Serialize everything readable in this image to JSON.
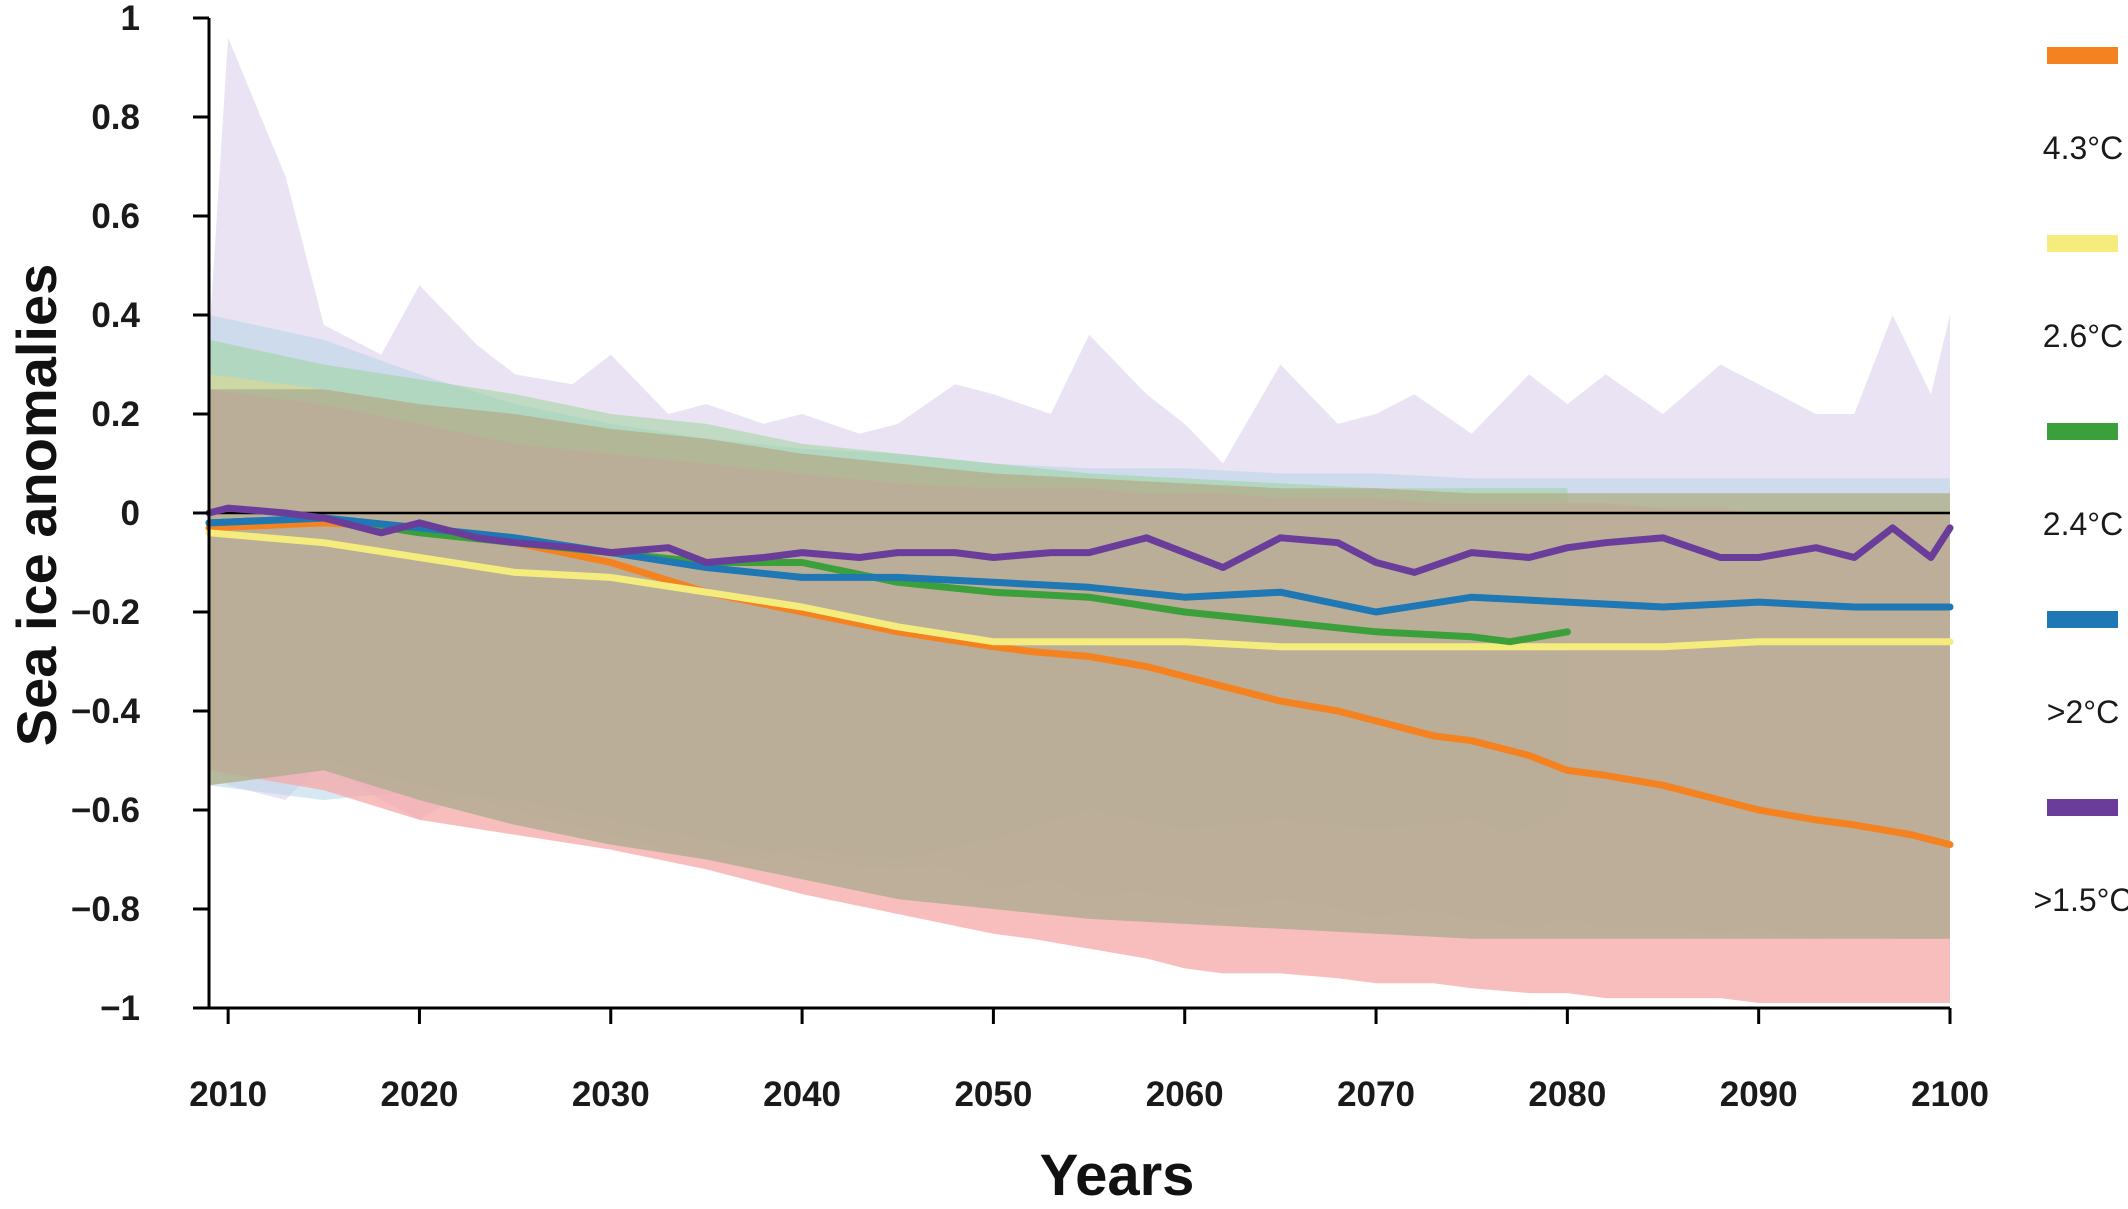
{
  "chart_data": {
    "type": "line",
    "title": "",
    "xlabel": "Years",
    "ylabel": "Sea ice anomalies",
    "xlim": [
      2009,
      2100
    ],
    "ylim": [
      -1,
      1
    ],
    "xticks": [
      2010,
      2020,
      2030,
      2040,
      2050,
      2060,
      2070,
      2080,
      2090,
      2100
    ],
    "xtick_labels": [
      "2010",
      "2020",
      "2030",
      "2040",
      "2050",
      "2060",
      "2070",
      "2080",
      "2090",
      "2100"
    ],
    "yticks": [
      1,
      0.8,
      0.6,
      0.4,
      0.2,
      0,
      -0.2,
      -0.4,
      -0.6,
      -0.8,
      -1
    ],
    "ytick_labels": [
      "1",
      "0.8",
      "0.6",
      "0.4",
      "0.2",
      "0",
      "−0.2",
      "−0.4",
      "−0.6",
      "−0.8",
      "−1"
    ],
    "zero_line": true,
    "grid": false,
    "legend_position": "right",
    "series": [
      {
        "name": "4.3°C",
        "color": "#F58220",
        "band_color": "#F6A8A8",
        "x": [
          2009,
          2015,
          2020,
          2025,
          2030,
          2035,
          2040,
          2045,
          2050,
          2052,
          2055,
          2058,
          2060,
          2062,
          2065,
          2068,
          2070,
          2073,
          2075,
          2078,
          2080,
          2082,
          2085,
          2088,
          2090,
          2093,
          2095,
          2098,
          2100
        ],
        "y": [
          -0.03,
          -0.02,
          -0.03,
          -0.06,
          -0.1,
          -0.16,
          -0.2,
          -0.24,
          -0.27,
          -0.28,
          -0.29,
          -0.31,
          -0.33,
          -0.35,
          -0.38,
          -0.4,
          -0.42,
          -0.45,
          -0.46,
          -0.49,
          -0.52,
          -0.53,
          -0.55,
          -0.58,
          -0.6,
          -0.62,
          -0.63,
          -0.65,
          -0.67
        ],
        "band_upper": [
          0.25,
          0.22,
          0.18,
          0.14,
          0.12,
          0.1,
          0.08,
          0.06,
          0.05,
          0.05,
          0.05,
          0.04,
          0.04,
          0.04,
          0.03,
          0.03,
          0.03,
          0.02,
          0.02,
          0.02,
          0.02,
          0.02,
          0.01,
          0.01,
          0.0,
          0.0,
          0.0,
          0.0,
          0.0
        ],
        "band_lower": [
          -0.52,
          -0.56,
          -0.62,
          -0.65,
          -0.68,
          -0.72,
          -0.77,
          -0.81,
          -0.85,
          -0.86,
          -0.88,
          -0.9,
          -0.92,
          -0.93,
          -0.93,
          -0.94,
          -0.95,
          -0.95,
          -0.96,
          -0.97,
          -0.97,
          -0.98,
          -0.98,
          -0.98,
          -0.99,
          -0.99,
          -0.99,
          -0.99,
          -0.99
        ]
      },
      {
        "name": "2.6°C",
        "color": "#F5EC7E",
        "band_color": "#E3D98C",
        "x": [
          2009,
          2015,
          2020,
          2025,
          2030,
          2035,
          2040,
          2045,
          2050,
          2055,
          2060,
          2065,
          2070,
          2075,
          2080,
          2085,
          2090,
          2095,
          2100
        ],
        "y": [
          -0.04,
          -0.06,
          -0.09,
          -0.12,
          -0.13,
          -0.16,
          -0.19,
          -0.23,
          -0.26,
          -0.26,
          -0.26,
          -0.27,
          -0.27,
          -0.27,
          -0.27,
          -0.27,
          -0.26,
          -0.26,
          -0.26
        ],
        "band_upper": [
          0.28,
          0.25,
          0.22,
          0.2,
          0.17,
          0.15,
          0.12,
          0.1,
          0.08,
          0.07,
          0.06,
          0.05,
          0.05,
          0.04,
          0.04,
          0.04,
          0.04,
          0.04,
          0.04
        ],
        "band_lower": [
          -0.55,
          -0.52,
          -0.58,
          -0.63,
          -0.67,
          -0.7,
          -0.74,
          -0.78,
          -0.8,
          -0.82,
          -0.83,
          -0.84,
          -0.85,
          -0.86,
          -0.86,
          -0.86,
          -0.86,
          -0.86,
          -0.86
        ]
      },
      {
        "name": "2.4°C",
        "color": "#3BA03B",
        "band_color": "#9CD39C",
        "x": [
          2009,
          2015,
          2020,
          2025,
          2030,
          2035,
          2040,
          2045,
          2050,
          2055,
          2060,
          2065,
          2070,
          2075,
          2077,
          2080
        ],
        "y": [
          -0.02,
          -0.01,
          -0.04,
          -0.06,
          -0.08,
          -0.1,
          -0.1,
          -0.14,
          -0.16,
          -0.17,
          -0.2,
          -0.22,
          -0.24,
          -0.25,
          -0.26,
          -0.24
        ],
        "band_upper": [
          0.35,
          0.3,
          0.27,
          0.24,
          0.2,
          0.18,
          0.14,
          0.12,
          0.1,
          0.08,
          0.07,
          0.06,
          0.05,
          0.05,
          0.05,
          0.05
        ],
        "band_lower": [
          -0.5,
          -0.5,
          -0.55,
          -0.6,
          -0.65,
          -0.7,
          -0.68,
          -0.7,
          -0.66,
          -0.6,
          -0.64,
          -0.62,
          -0.64,
          -0.62,
          -0.65,
          -0.6
        ]
      },
      {
        "name": ">2°C",
        "color": "#1F77B4",
        "band_color": "#B5D5E8",
        "x": [
          2009,
          2015,
          2020,
          2025,
          2030,
          2035,
          2040,
          2045,
          2050,
          2055,
          2060,
          2065,
          2070,
          2075,
          2080,
          2085,
          2090,
          2095,
          2100
        ],
        "y": [
          -0.02,
          -0.01,
          -0.03,
          -0.05,
          -0.08,
          -0.11,
          -0.13,
          -0.13,
          -0.14,
          -0.15,
          -0.17,
          -0.16,
          -0.2,
          -0.17,
          -0.18,
          -0.19,
          -0.18,
          -0.19,
          -0.19
        ],
        "band_upper": [
          0.4,
          0.35,
          0.28,
          0.22,
          0.18,
          0.15,
          0.13,
          0.12,
          0.1,
          0.09,
          0.09,
          0.08,
          0.08,
          0.07,
          0.07,
          0.07,
          0.07,
          0.07,
          0.07
        ],
        "band_lower": [
          -0.55,
          -0.58,
          -0.56,
          -0.58,
          -0.62,
          -0.66,
          -0.7,
          -0.72,
          -0.7,
          -0.75,
          -0.78,
          -0.77,
          -0.79,
          -0.79,
          -0.8,
          -0.8,
          -0.81,
          -0.81,
          -0.81
        ]
      },
      {
        "name": ">1.5°C",
        "color": "#6A3D9A",
        "band_color": "#D9CCEA",
        "x": [
          2009,
          2010,
          2013,
          2015,
          2018,
          2020,
          2023,
          2025,
          2028,
          2030,
          2033,
          2035,
          2038,
          2040,
          2043,
          2045,
          2048,
          2050,
          2053,
          2055,
          2058,
          2060,
          2062,
          2065,
          2068,
          2070,
          2072,
          2075,
          2078,
          2080,
          2082,
          2085,
          2088,
          2090,
          2093,
          2095,
          2097,
          2099,
          2100
        ],
        "y": [
          0.0,
          0.01,
          0.0,
          -0.01,
          -0.04,
          -0.02,
          -0.05,
          -0.06,
          -0.07,
          -0.08,
          -0.07,
          -0.1,
          -0.09,
          -0.08,
          -0.09,
          -0.08,
          -0.08,
          -0.09,
          -0.08,
          -0.08,
          -0.05,
          -0.08,
          -0.11,
          -0.05,
          -0.06,
          -0.1,
          -0.12,
          -0.08,
          -0.09,
          -0.07,
          -0.06,
          -0.05,
          -0.09,
          -0.09,
          -0.07,
          -0.09,
          -0.03,
          -0.09,
          -0.03
        ],
        "band_upper": [
          0.35,
          0.96,
          0.68,
          0.38,
          0.32,
          0.46,
          0.34,
          0.28,
          0.26,
          0.32,
          0.2,
          0.22,
          0.18,
          0.2,
          0.16,
          0.18,
          0.26,
          0.24,
          0.2,
          0.36,
          0.24,
          0.18,
          0.1,
          0.3,
          0.18,
          0.2,
          0.24,
          0.16,
          0.28,
          0.22,
          0.28,
          0.2,
          0.3,
          0.26,
          0.2,
          0.2,
          0.4,
          0.24,
          0.4
        ],
        "band_lower": [
          -0.5,
          -0.55,
          -0.58,
          -0.5,
          -0.58,
          -0.62,
          -0.55,
          -0.6,
          -0.62,
          -0.64,
          -0.67,
          -0.66,
          -0.7,
          -0.68,
          -0.72,
          -0.7,
          -0.72,
          -0.76,
          -0.74,
          -0.78,
          -0.76,
          -0.78,
          -0.8,
          -0.78,
          -0.8,
          -0.82,
          -0.8,
          -0.82,
          -0.84,
          -0.82,
          -0.84,
          -0.84,
          -0.85,
          -0.84,
          -0.86,
          -0.85,
          -0.86,
          -0.86,
          -0.86
        ]
      }
    ],
    "legend": [
      "4.3°C",
      "2.6°C",
      "2.4°C",
      ">2°C",
      ">1.5°C"
    ]
  }
}
